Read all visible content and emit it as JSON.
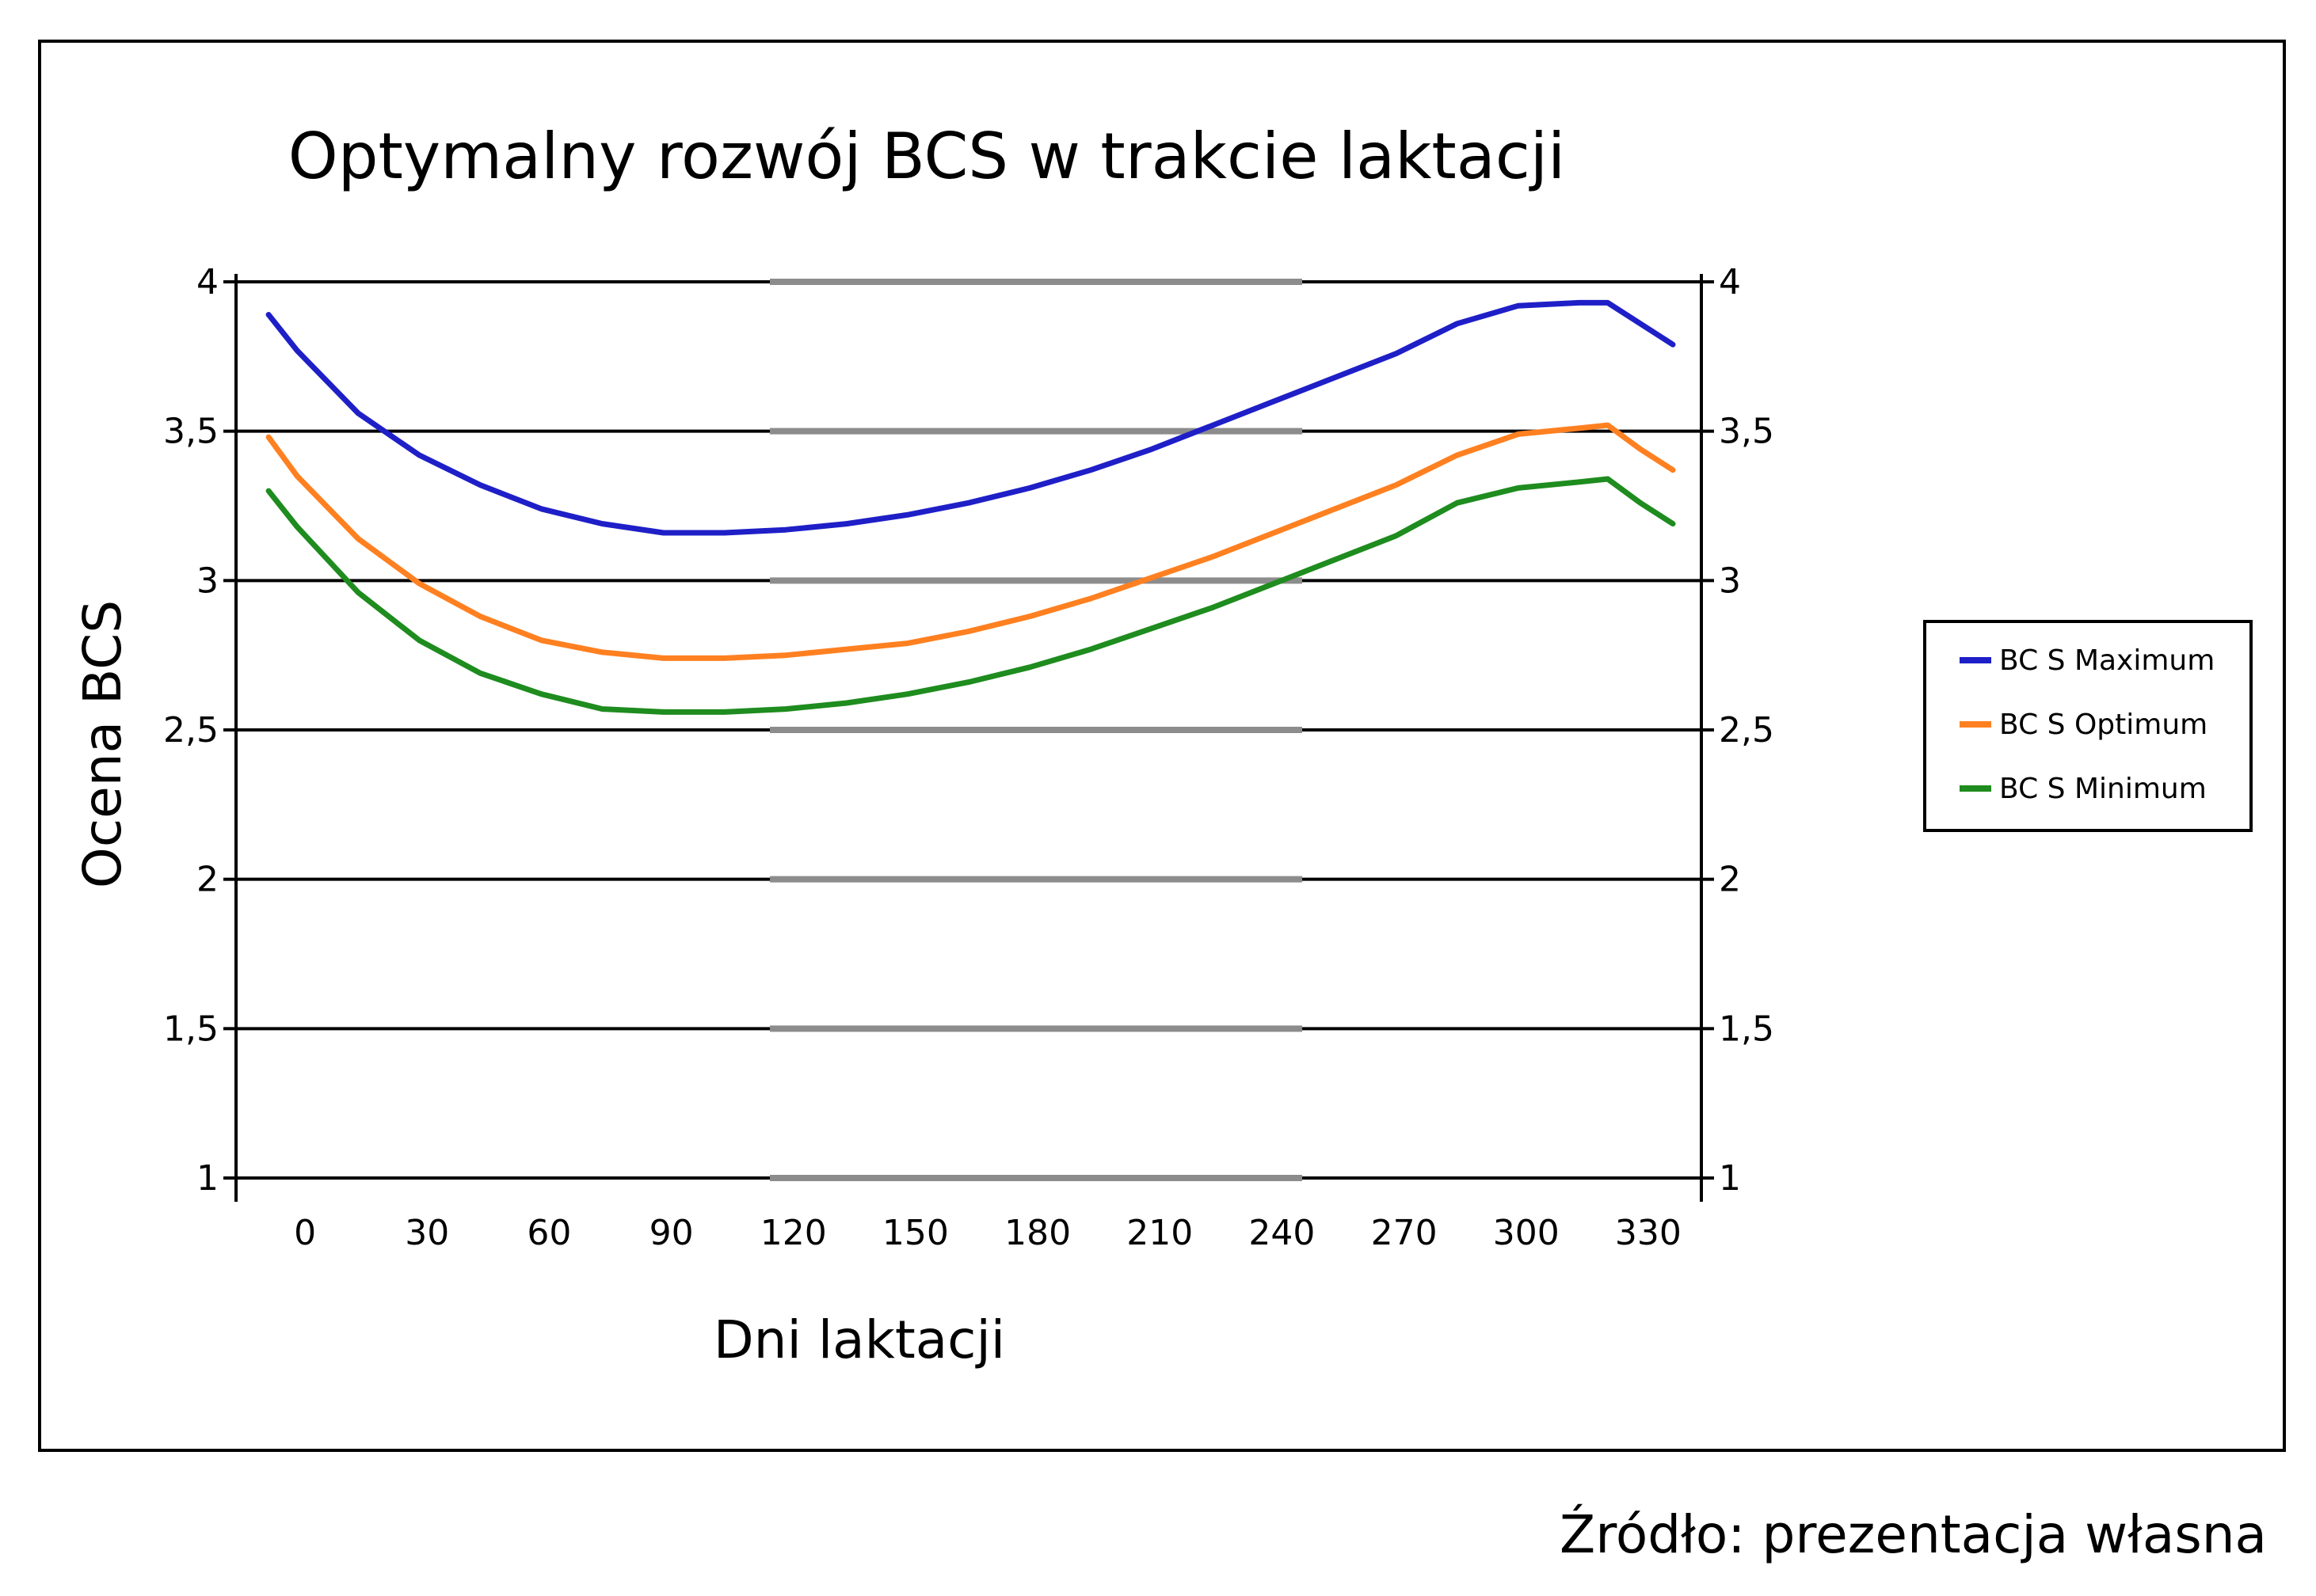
{
  "chart_data": {
    "type": "line",
    "title": "Optymalny rozwój BCS w trakcie laktacji",
    "xlabel": "Dni laktacji",
    "ylabel": "Ocena BCS",
    "x_ticks": [
      "0",
      "30",
      "60",
      "90",
      "120",
      "150",
      "180",
      "210",
      "240",
      "270",
      "300",
      "330"
    ],
    "y_ticks": [
      "1",
      "1,5",
      "2",
      "2,5",
      "3",
      "3,5",
      "4"
    ],
    "y_tick_values": [
      1,
      1.5,
      2,
      2.5,
      3,
      3.5,
      4
    ],
    "ylim": [
      1,
      4
    ],
    "xlim": [
      -15,
      345
    ],
    "secondary_y_axis": true,
    "grid": "horizontal",
    "legend_position": "right",
    "series": [
      {
        "name": "BC S Maximum",
        "color": "#1f1fc8",
        "x": [
          -7,
          0,
          15,
          30,
          45,
          60,
          75,
          90,
          105,
          120,
          135,
          150,
          165,
          180,
          195,
          210,
          225,
          240,
          255,
          270,
          285,
          300,
          315,
          322,
          330,
          338
        ],
        "y": [
          3.89,
          3.77,
          3.56,
          3.42,
          3.32,
          3.24,
          3.19,
          3.16,
          3.16,
          3.17,
          3.19,
          3.22,
          3.26,
          3.31,
          3.37,
          3.44,
          3.52,
          3.6,
          3.68,
          3.76,
          3.86,
          3.92,
          3.93,
          3.93,
          3.86,
          3.79
        ]
      },
      {
        "name": "BC S Optimum",
        "color": "#ff8020",
        "x": [
          -7,
          0,
          15,
          30,
          45,
          60,
          75,
          90,
          105,
          120,
          135,
          150,
          165,
          180,
          195,
          210,
          225,
          240,
          255,
          270,
          285,
          300,
          315,
          322,
          330,
          338
        ],
        "y": [
          3.48,
          3.35,
          3.14,
          2.99,
          2.88,
          2.8,
          2.76,
          2.74,
          2.74,
          2.75,
          2.77,
          2.79,
          2.83,
          2.88,
          2.94,
          3.01,
          3.08,
          3.16,
          3.24,
          3.32,
          3.42,
          3.49,
          3.51,
          3.52,
          3.44,
          3.37
        ]
      },
      {
        "name": "BC S Minimum",
        "color": "#1e8c1e",
        "x": [
          -7,
          0,
          15,
          30,
          45,
          60,
          75,
          90,
          105,
          120,
          135,
          150,
          165,
          180,
          195,
          210,
          225,
          240,
          255,
          270,
          285,
          300,
          315,
          322,
          330,
          338
        ],
        "y": [
          3.3,
          3.18,
          2.96,
          2.8,
          2.69,
          2.62,
          2.57,
          2.56,
          2.56,
          2.57,
          2.59,
          2.62,
          2.66,
          2.71,
          2.77,
          2.84,
          2.91,
          2.99,
          3.07,
          3.15,
          3.26,
          3.31,
          3.33,
          3.34,
          3.26,
          3.19
        ]
      }
    ]
  },
  "footer": {
    "source": "Źródło: prezentacja własna"
  }
}
